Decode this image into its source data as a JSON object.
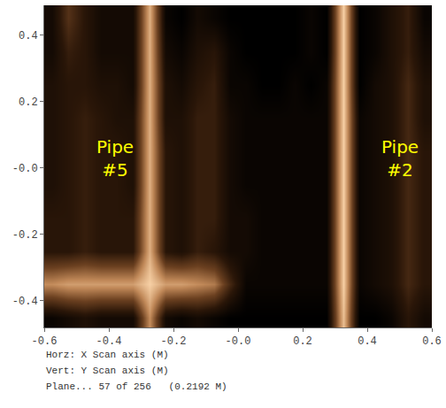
{
  "chart_data": {
    "type": "heatmap",
    "x": [
      -0.575,
      -0.525,
      -0.475,
      -0.425,
      -0.375,
      -0.325,
      -0.275,
      -0.225,
      -0.175,
      -0.125,
      -0.075,
      -0.025,
      0.025,
      0.075,
      0.125,
      0.175,
      0.225,
      0.275,
      0.325,
      0.375,
      0.425,
      0.475,
      0.525,
      0.575
    ],
    "y": [
      -0.45,
      -0.35,
      -0.25,
      -0.15,
      -0.05,
      0.05,
      0.15,
      0.25,
      0.35,
      0.45
    ],
    "z": [
      [
        0.15,
        0.2,
        0.25,
        0.2,
        0.2,
        0.2,
        0.75,
        0.2,
        0.15,
        0.2,
        0.15,
        0.1,
        0.1,
        0.1,
        0.1,
        0.1,
        0.1,
        0.1,
        0.9,
        0.1,
        0.1,
        0.15,
        0.3,
        0.2
      ],
      [
        0.75,
        0.8,
        0.8,
        0.8,
        0.8,
        0.8,
        0.95,
        0.8,
        0.8,
        0.75,
        0.7,
        0.4,
        0.15,
        0.15,
        0.15,
        0.15,
        0.15,
        0.15,
        0.95,
        0.15,
        0.2,
        0.25,
        0.4,
        0.3
      ],
      [
        0.3,
        0.3,
        0.35,
        0.3,
        0.3,
        0.3,
        0.85,
        0.3,
        0.25,
        0.35,
        0.3,
        0.2,
        0.2,
        0.15,
        0.15,
        0.15,
        0.15,
        0.15,
        0.95,
        0.15,
        0.2,
        0.25,
        0.4,
        0.3
      ],
      [
        0.3,
        0.3,
        0.35,
        0.3,
        0.3,
        0.3,
        0.85,
        0.3,
        0.25,
        0.35,
        0.35,
        0.2,
        0.2,
        0.15,
        0.15,
        0.15,
        0.15,
        0.15,
        0.95,
        0.15,
        0.2,
        0.25,
        0.4,
        0.3
      ],
      [
        0.25,
        0.3,
        0.35,
        0.3,
        0.3,
        0.25,
        0.85,
        0.3,
        0.25,
        0.35,
        0.35,
        0.2,
        0.15,
        0.15,
        0.15,
        0.15,
        0.15,
        0.15,
        0.95,
        0.15,
        0.2,
        0.25,
        0.4,
        0.3
      ],
      [
        0.25,
        0.3,
        0.35,
        0.3,
        0.3,
        0.25,
        0.85,
        0.3,
        0.25,
        0.35,
        0.35,
        0.2,
        0.15,
        0.15,
        0.15,
        0.15,
        0.15,
        0.15,
        0.95,
        0.15,
        0.2,
        0.25,
        0.4,
        0.3
      ],
      [
        0.25,
        0.3,
        0.35,
        0.3,
        0.25,
        0.25,
        0.85,
        0.25,
        0.25,
        0.35,
        0.35,
        0.2,
        0.15,
        0.15,
        0.15,
        0.15,
        0.15,
        0.15,
        0.95,
        0.15,
        0.2,
        0.25,
        0.4,
        0.25
      ],
      [
        0.25,
        0.3,
        0.3,
        0.25,
        0.25,
        0.2,
        0.85,
        0.25,
        0.2,
        0.3,
        0.35,
        0.15,
        0.15,
        0.1,
        0.1,
        0.15,
        0.1,
        0.15,
        0.95,
        0.1,
        0.2,
        0.25,
        0.4,
        0.25
      ],
      [
        0.2,
        0.35,
        0.3,
        0.2,
        0.2,
        0.2,
        0.85,
        0.2,
        0.15,
        0.25,
        0.3,
        0.15,
        0.1,
        0.1,
        0.1,
        0.1,
        0.15,
        0.1,
        0.95,
        0.1,
        0.15,
        0.25,
        0.35,
        0.2
      ],
      [
        0.2,
        0.45,
        0.3,
        0.2,
        0.2,
        0.2,
        0.85,
        0.15,
        0.1,
        0.2,
        0.15,
        0.1,
        0.1,
        0.1,
        0.1,
        0.1,
        0.15,
        0.1,
        0.95,
        0.1,
        0.15,
        0.25,
        0.35,
        0.15
      ]
    ],
    "xlim": [
      -0.6,
      0.6
    ],
    "ylim": [
      -0.48,
      0.49
    ],
    "xticks": [
      -0.6,
      -0.4,
      -0.2,
      {
        "value": 0,
        "label": "-0.0"
      },
      0.2,
      0.4,
      0.6
    ],
    "yticks": [
      -0.4,
      -0.2,
      {
        "value": 0,
        "label": "-0.0"
      },
      0.2,
      0.4
    ],
    "xlabel": "Horz: X Scan axis (M)",
    "ylabel": "Vert: Y Scan axis (M)",
    "caption": "Plane... 57 of 256   (0.2192 M)",
    "annotations": [
      {
        "text": "Pipe #5",
        "x": -0.38,
        "y": 0.03
      },
      {
        "text": "Pipe #2",
        "x": 0.5,
        "y": 0.03
      }
    ],
    "grid": false
  }
}
